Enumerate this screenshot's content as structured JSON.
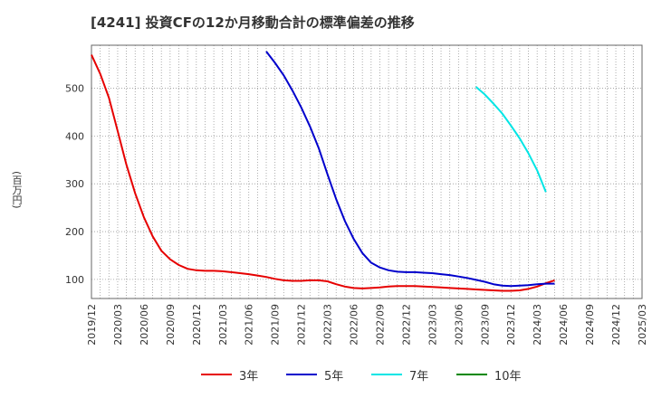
{
  "chart_data": {
    "type": "line",
    "title": "[4241]  投資CFの12か月移動合計の標準偏差の推移",
    "ylabel": "(百万円)",
    "xlabel": "",
    "ylim": [
      60,
      590
    ],
    "yticks": [
      100,
      200,
      300,
      400,
      500
    ],
    "x_labels": [
      "2019/12",
      "2020/03",
      "2020/06",
      "2020/09",
      "2020/12",
      "2021/03",
      "2021/06",
      "2021/09",
      "2021/12",
      "2022/03",
      "2022/06",
      "2022/09",
      "2022/12",
      "2023/03",
      "2023/06",
      "2023/09",
      "2023/12",
      "2024/03",
      "2024/06",
      "2024/09",
      "2024/12",
      "2025/03"
    ],
    "grid": true,
    "legend_position": "bottom",
    "series": [
      {
        "name": "3年",
        "color": "#e60000",
        "start": "2019/12",
        "values": [
          570,
          530,
          480,
          410,
          340,
          280,
          230,
          190,
          160,
          142,
          130,
          122,
          119,
          118,
          118,
          117,
          115,
          113,
          111,
          108,
          105,
          101,
          98,
          97,
          97,
          98,
          98,
          96,
          90,
          85,
          82,
          81,
          82,
          83,
          85,
          86,
          86,
          86,
          85,
          84,
          83,
          82,
          81,
          80,
          79,
          78,
          77,
          76,
          76,
          77,
          80,
          85,
          92,
          98
        ]
      },
      {
        "name": "5年",
        "color": "#0000cc",
        "start": "2021/08",
        "values": [
          577,
          553,
          527,
          495,
          460,
          420,
          375,
          320,
          268,
          222,
          185,
          155,
          135,
          125,
          119,
          116,
          115,
          115,
          114,
          113,
          111,
          109,
          106,
          103,
          99,
          95,
          90,
          87,
          86,
          87,
          88,
          90,
          91,
          91
        ]
      },
      {
        "name": "7年",
        "color": "#00e5e5",
        "start": "2023/08",
        "values": [
          503,
          487,
          468,
          447,
          422,
          395,
          364,
          328,
          283
        ]
      },
      {
        "name": "10年",
        "color": "#008800",
        "start": "2024/03",
        "values": []
      }
    ]
  }
}
